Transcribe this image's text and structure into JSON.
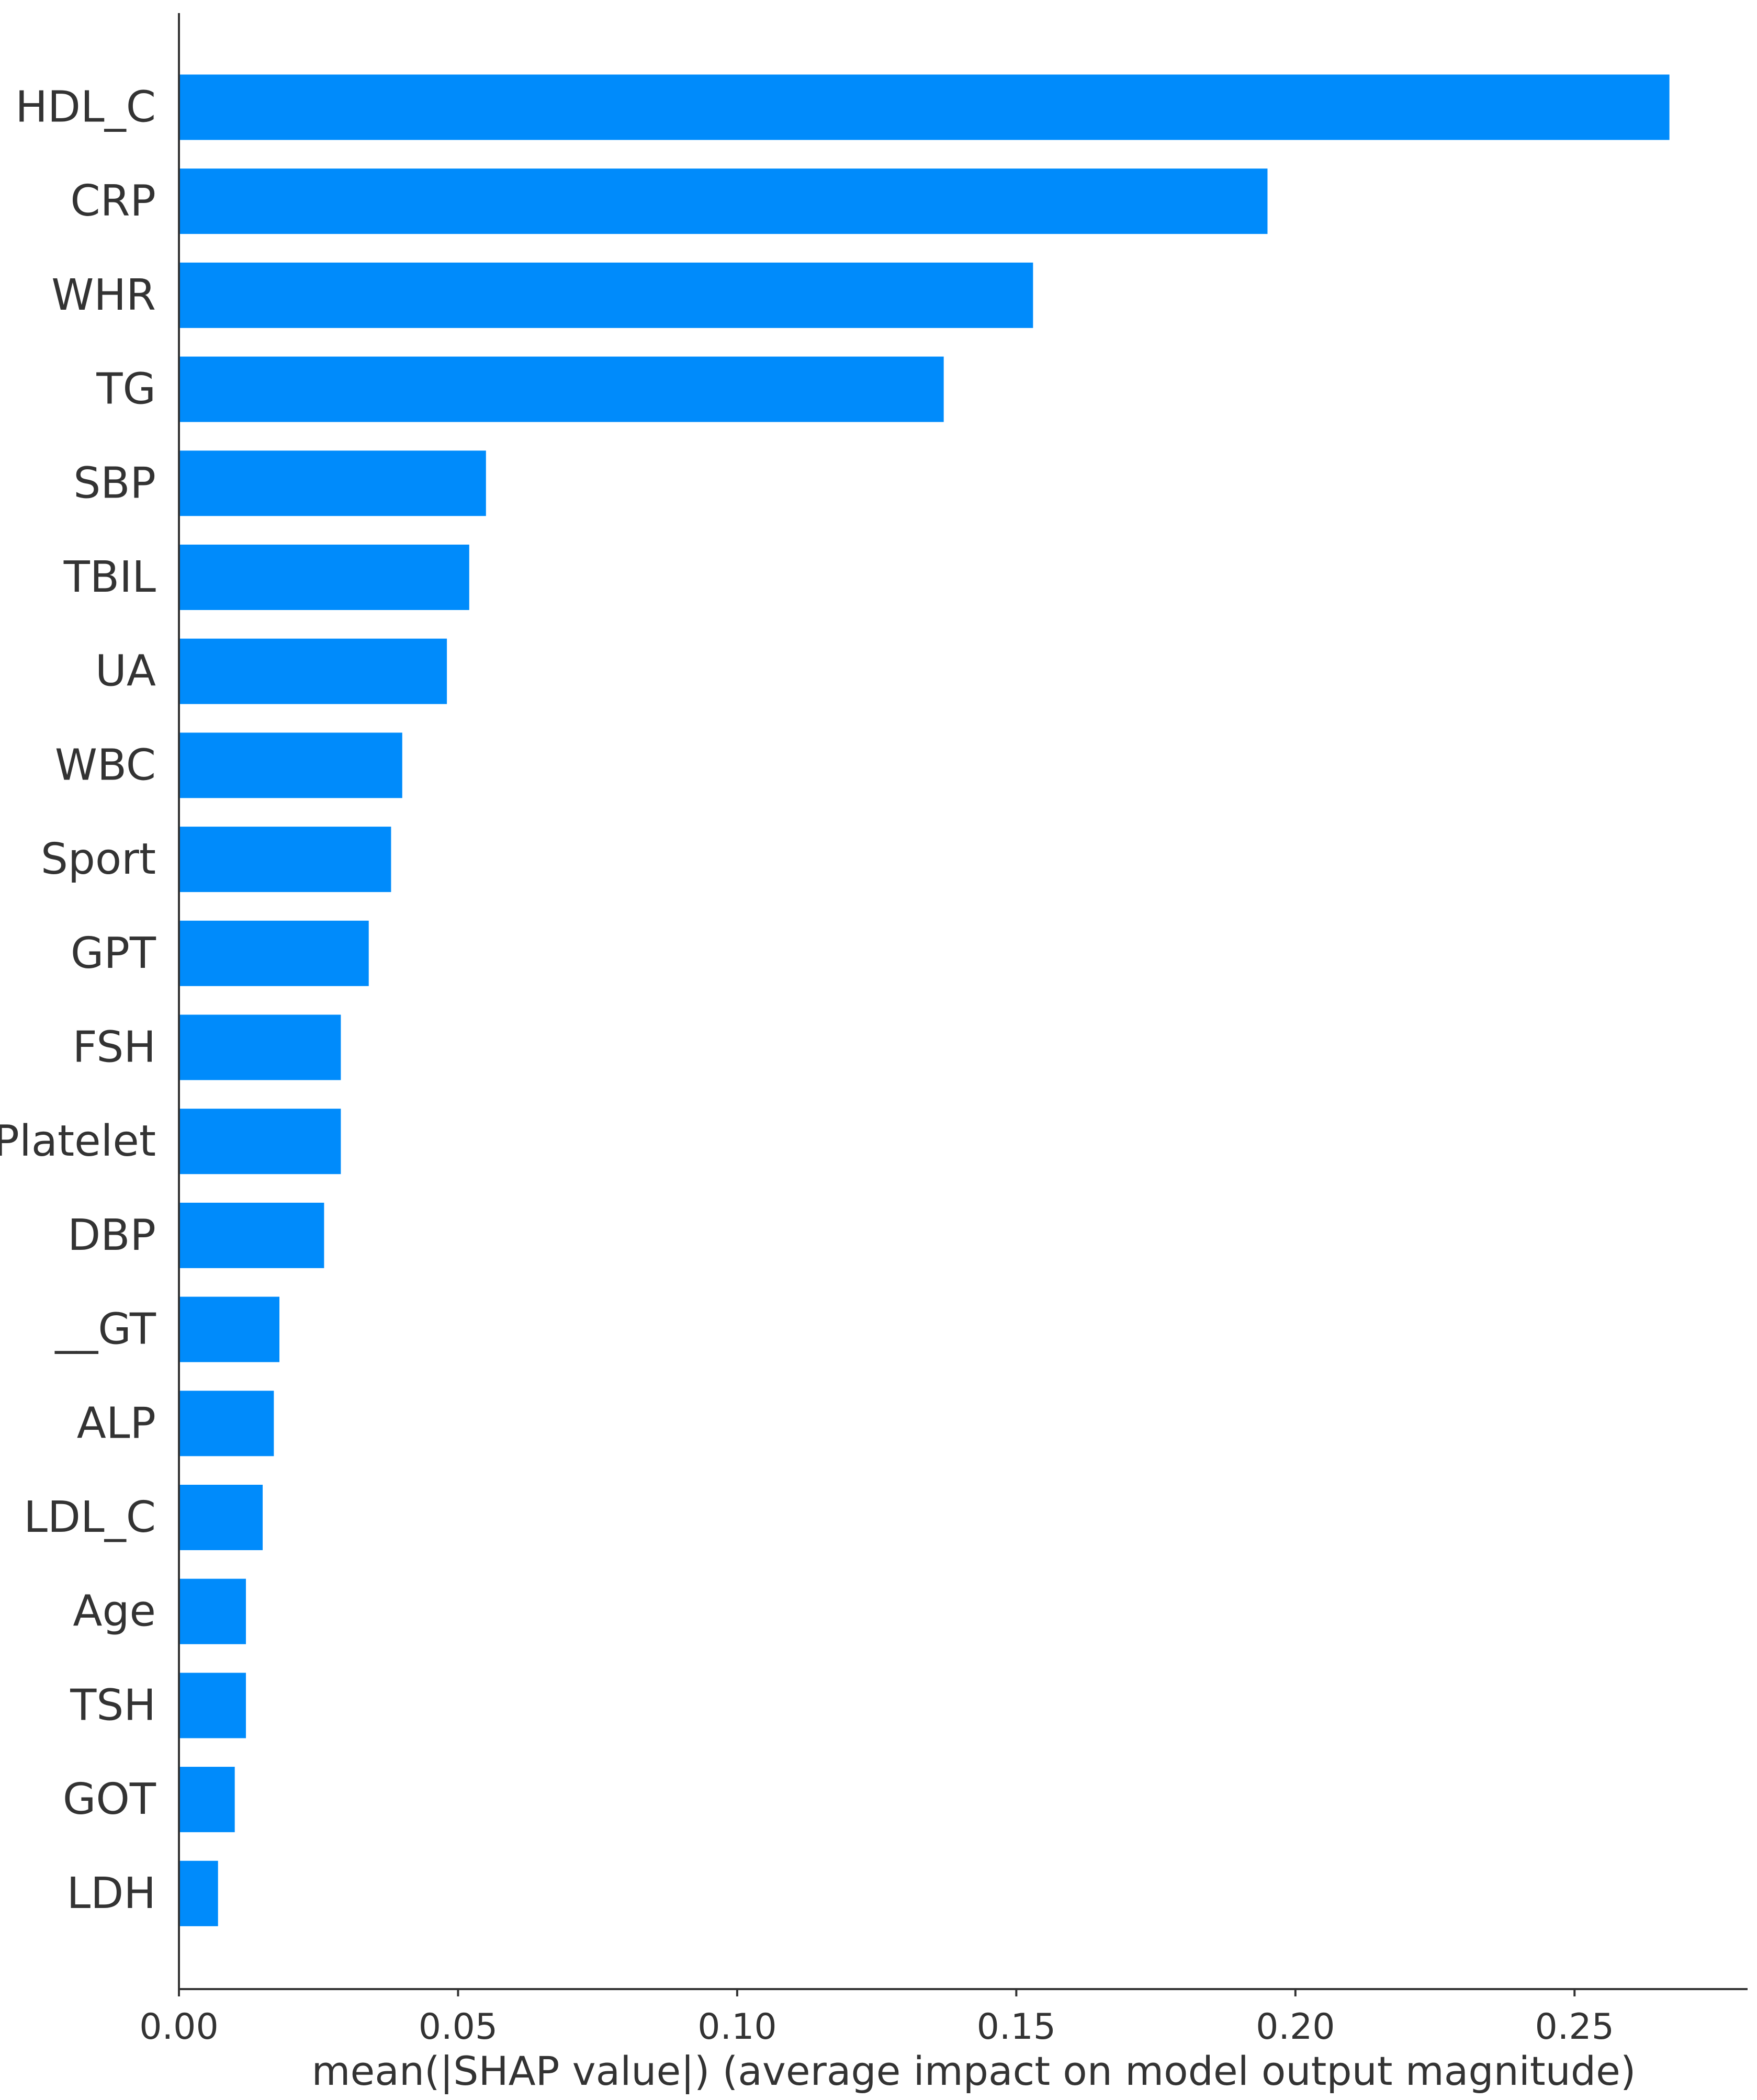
{
  "chart_data": {
    "type": "bar",
    "orientation": "horizontal",
    "categories": [
      "HDL_C",
      "CRP",
      "WHR",
      "TG",
      "SBP",
      "TBIL",
      "UA",
      "WBC",
      "Sport",
      "GPT",
      "FSH",
      "Platelet",
      "DBP",
      "__GT",
      "ALP",
      "LDL_C",
      "Age",
      "TSH",
      "GOT",
      "LDH"
    ],
    "values": [
      0.267,
      0.195,
      0.153,
      0.137,
      0.055,
      0.052,
      0.048,
      0.04,
      0.038,
      0.034,
      0.029,
      0.029,
      0.026,
      0.018,
      0.017,
      0.015,
      0.012,
      0.012,
      0.01,
      0.007
    ],
    "xlabel": "mean(|SHAP value|) (average impact on model output magnitude)",
    "ylabel": "",
    "title": "",
    "xlim": [
      0,
      0.281
    ],
    "xticks": [
      0.0,
      0.05,
      0.1,
      0.15,
      0.2,
      0.25
    ],
    "xtick_labels": [
      "0.00",
      "0.05",
      "0.10",
      "0.15",
      "0.20",
      "0.25"
    ],
    "bar_color": "#008bfb",
    "axis_color": "#333333",
    "grid": false
  }
}
